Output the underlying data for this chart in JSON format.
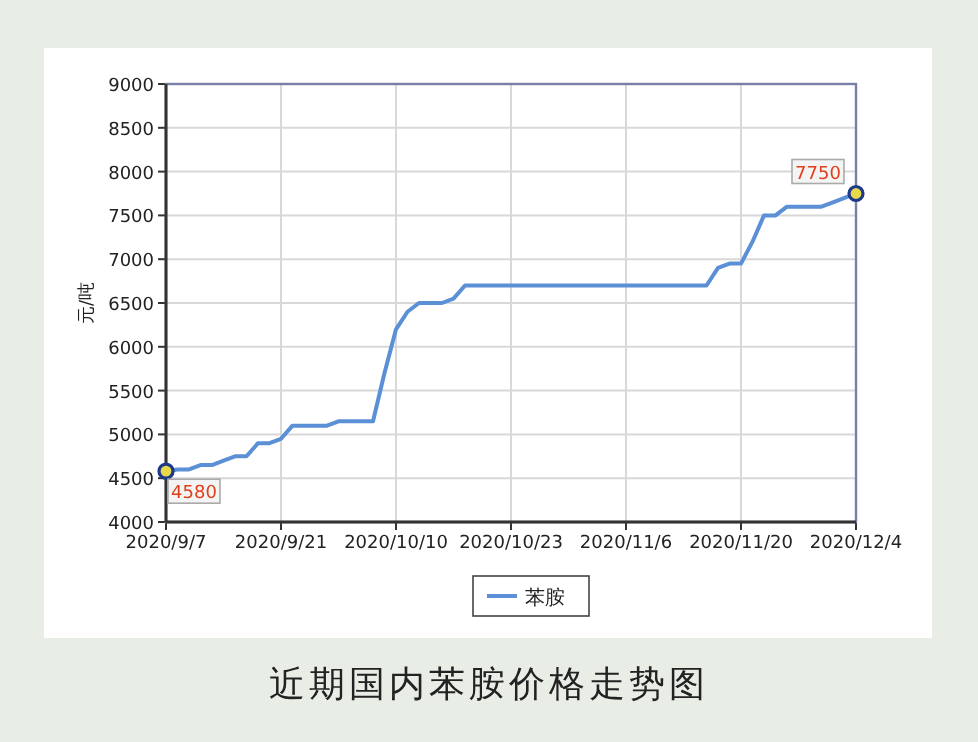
{
  "chart_data": {
    "type": "line",
    "title": "近期国内苯胺价格走势图",
    "ylabel": "元/吨",
    "categories": [
      "2020/9/7",
      null,
      null,
      null,
      null,
      null,
      null,
      null,
      null,
      null,
      "2020/9/21",
      null,
      null,
      null,
      null,
      null,
      null,
      null,
      null,
      null,
      "2020/10/10",
      null,
      null,
      null,
      null,
      null,
      null,
      null,
      null,
      null,
      "2020/10/23",
      null,
      null,
      null,
      null,
      null,
      null,
      null,
      null,
      null,
      "2020/11/6",
      null,
      null,
      null,
      null,
      null,
      null,
      null,
      null,
      null,
      "2020/11/20",
      null,
      null,
      null,
      null,
      null,
      null,
      null,
      null,
      null,
      "2020/12/4"
    ],
    "series": [
      {
        "name": "苯胺",
        "color": "#5b8fd6",
        "values": [
          4580,
          4600,
          4600,
          4650,
          4650,
          4700,
          4750,
          4750,
          4900,
          4900,
          4950,
          5100,
          5100,
          5100,
          5100,
          5150,
          5150,
          5150,
          5150,
          5700,
          6200,
          6400,
          6500,
          6500,
          6500,
          6550,
          6700,
          6700,
          6700,
          6700,
          6700,
          6700,
          6700,
          6700,
          6700,
          6700,
          6700,
          6700,
          6700,
          6700,
          6700,
          6700,
          6700,
          6700,
          6700,
          6700,
          6700,
          6700,
          6900,
          6950,
          6950,
          7200,
          7500,
          7500,
          7600,
          7600,
          7600,
          7600,
          7650,
          7700,
          7750
        ]
      }
    ],
    "ylim": [
      4000,
      9000
    ],
    "yticks": [
      4000,
      4500,
      5000,
      5500,
      6000,
      6500,
      7000,
      7500,
      8000,
      8500,
      9000
    ],
    "grid": true,
    "legend": "bottom",
    "marker": "none",
    "line_style": "solid",
    "annotations": [
      {
        "text": "4580",
        "x": "2020/9/7",
        "y": 4580
      },
      {
        "text": "7750",
        "x": "2020/12/4",
        "y": 7750
      }
    ]
  }
}
